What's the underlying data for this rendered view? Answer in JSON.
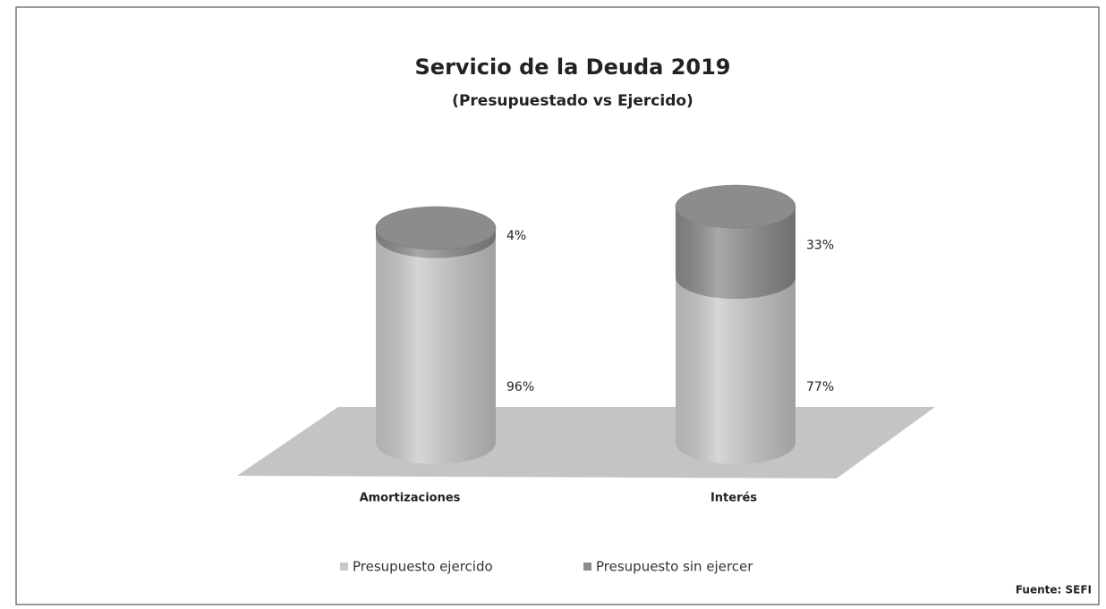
{
  "chart_data": {
    "type": "cylinder-stacked",
    "title": "Servicio de la Deuda 2019",
    "subtitle": "(Presupuestado vs Ejercido)",
    "categories": [
      "Amortizaciones",
      "Interés"
    ],
    "series": [
      {
        "name": "Presupuesto ejercido",
        "color": "#c9c9c9",
        "values": [
          96,
          77
        ],
        "value_labels": [
          "96%",
          "77%"
        ]
      },
      {
        "name": "Presupuesto sin ejercer",
        "color": "#8c8c8c",
        "values": [
          4,
          33
        ],
        "value_labels": [
          "4%",
          "33%"
        ]
      }
    ],
    "legend": "bottom",
    "source": "Fuente: SEFI"
  }
}
